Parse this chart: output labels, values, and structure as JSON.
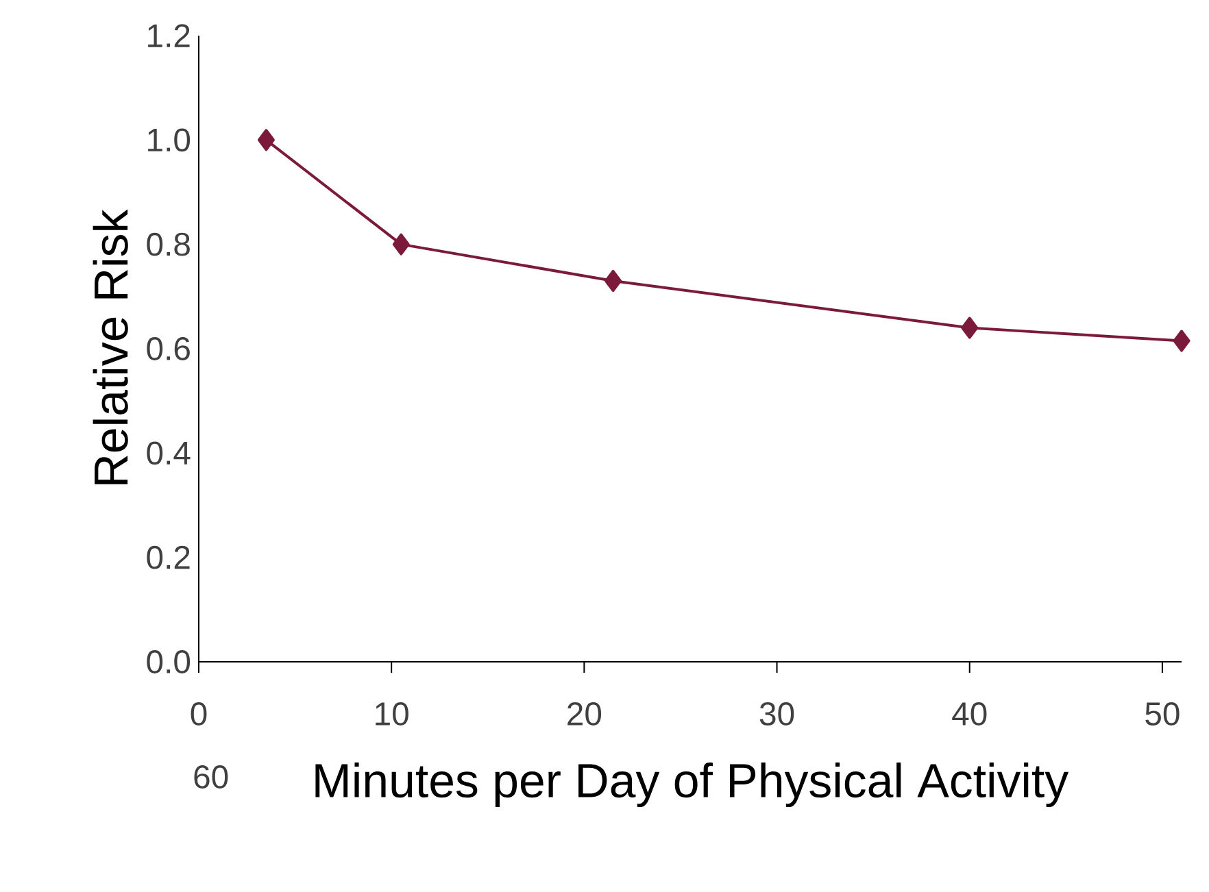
{
  "chart_data": {
    "type": "line",
    "xlabel": "Minutes per Day of Physical Activity",
    "ylabel": "Relative Risk",
    "x": [
      3.5,
      10.5,
      21.5,
      40,
      51
    ],
    "series": [
      {
        "color": "#7b1a3a",
        "values": [
          1.0,
          0.8,
          0.73,
          0.64,
          0.615
        ]
      }
    ],
    "xlim": [
      0,
      51
    ],
    "xticks": [
      0,
      10,
      20,
      30,
      40,
      50
    ],
    "ylim": [
      0,
      1.2
    ],
    "yticks": [
      {
        "value": 0,
        "label": "0.0"
      },
      {
        "value": 0.2,
        "label": "0.2"
      },
      {
        "value": 0.4,
        "label": "0.4"
      },
      {
        "value": 0.6,
        "label": "0.6"
      },
      {
        "value": 0.8,
        "label": "0.8"
      },
      {
        "value": 1.0,
        "label": "1.0"
      },
      {
        "value": 1.2,
        "label": "1.2"
      }
    ],
    "annotations": [
      "60"
    ],
    "marker": "diamond",
    "line_style": "solid",
    "grid": false
  }
}
